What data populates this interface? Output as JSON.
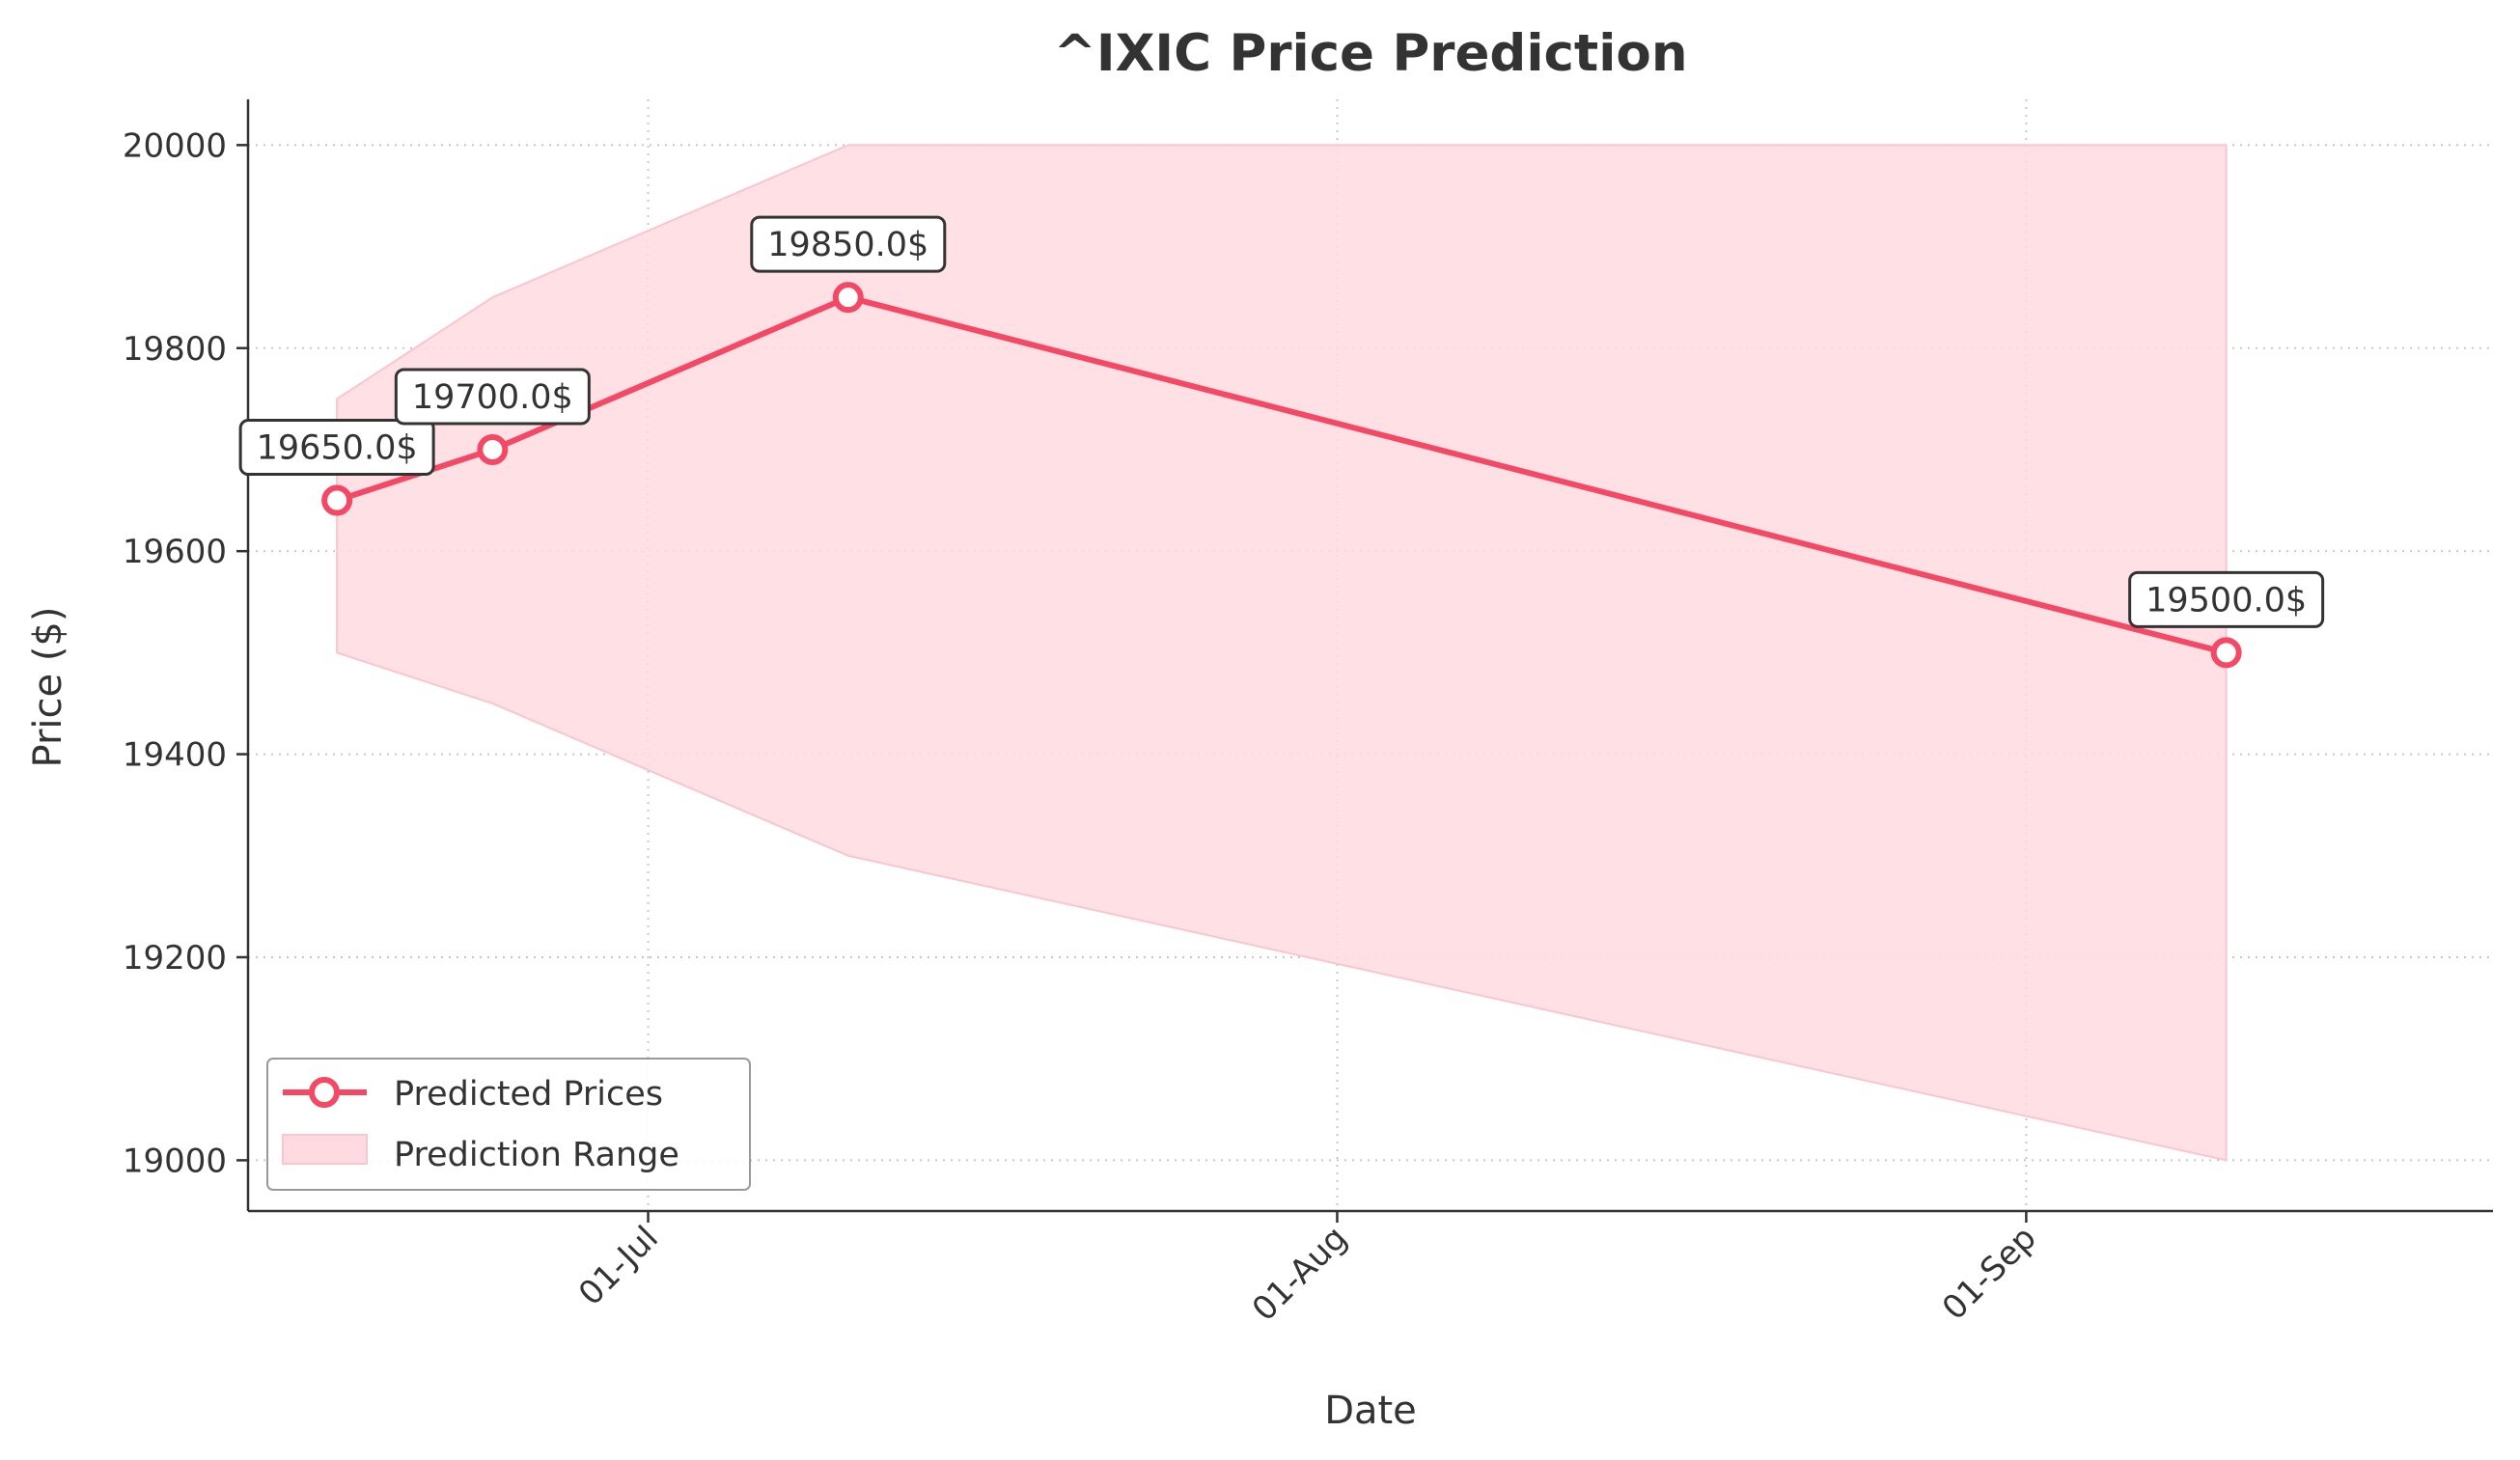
{
  "colors": {
    "line": "#f44864",
    "range_fill": "#ffdbe1",
    "range_edge": "#f9c6cf",
    "grid": "#c8c8c8",
    "axis": "#333333",
    "label_box_border": "#333333"
  },
  "chart_data": {
    "type": "line",
    "title": "^IXIC Price Prediction",
    "xlabel": "Date",
    "ylabel": "Price ($)",
    "x_axis_type": "date",
    "xlim": [
      "2024-06-13",
      "2024-09-22"
    ],
    "ylim": [
      18950,
      20045
    ],
    "grid": true,
    "x_ticks": [
      {
        "date": "2024-07-01",
        "label": "01-Jul"
      },
      {
        "date": "2024-08-01",
        "label": "01-Aug"
      },
      {
        "date": "2024-09-01",
        "label": "01-Sep"
      }
    ],
    "y_ticks": [
      19000,
      19200,
      19400,
      19600,
      19800,
      20000
    ],
    "legend": {
      "position": "lower-left",
      "entries": [
        "Predicted Prices",
        "Prediction Range"
      ]
    },
    "series": [
      {
        "name": "Predicted Prices",
        "x": [
          "2024-06-17",
          "2024-06-24",
          "2024-07-10",
          "2024-09-10"
        ],
        "values": [
          19650.0,
          19700.0,
          19850.0,
          19500.0
        ],
        "labels": [
          "19650.0$",
          "19700.0$",
          "19850.0$",
          "19500.0$"
        ]
      }
    ],
    "range": {
      "name": "Prediction Range",
      "x": [
        "2024-06-17",
        "2024-06-24",
        "2024-07-10",
        "2024-09-10"
      ],
      "lower": [
        19500,
        19450,
        19300,
        19000
      ],
      "upper": [
        19750,
        19850,
        20000,
        20000
      ]
    }
  }
}
